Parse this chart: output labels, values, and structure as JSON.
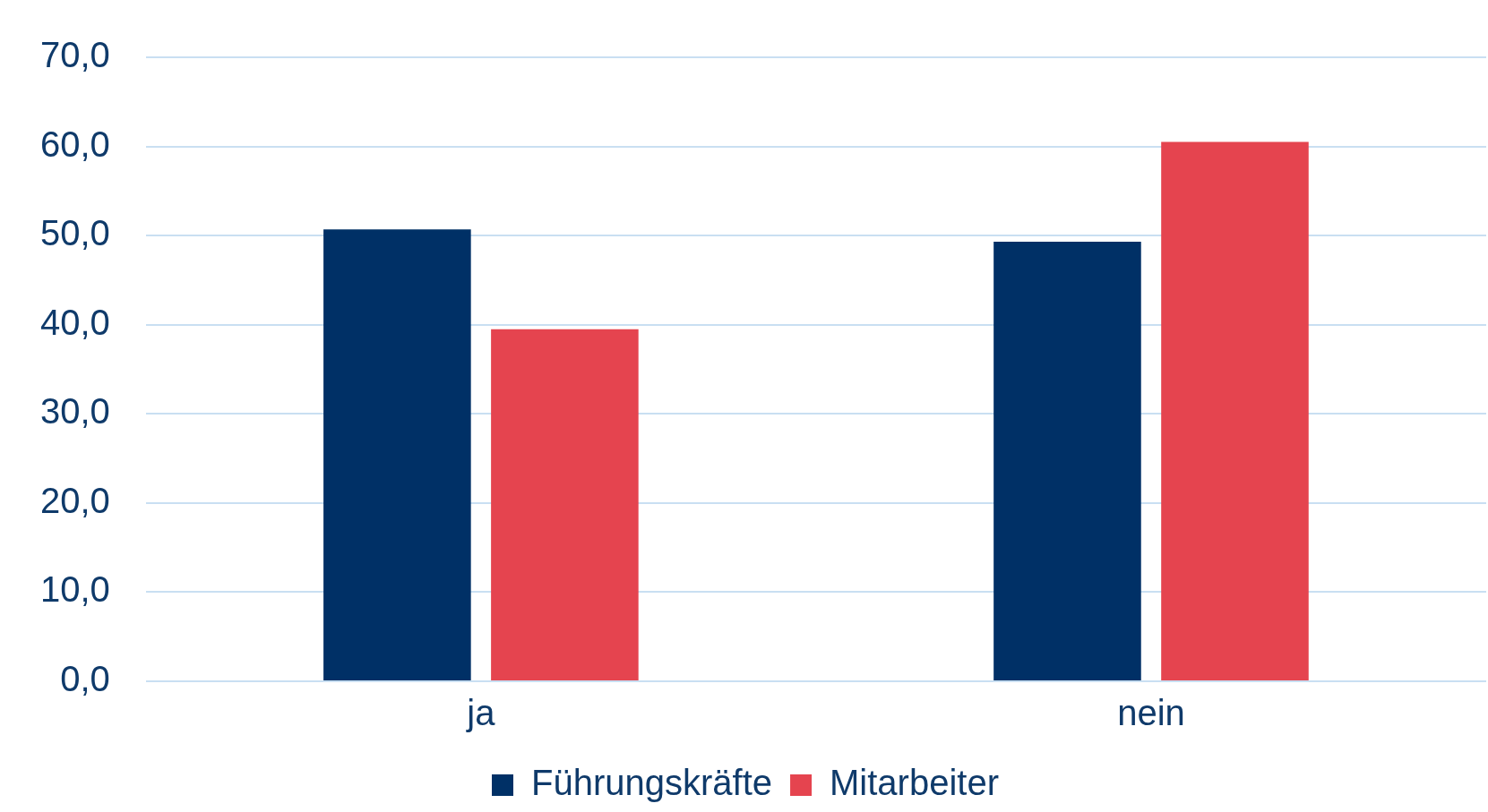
{
  "chart_data": {
    "type": "bar",
    "categories": [
      "ja",
      "nein"
    ],
    "series": [
      {
        "name": "Führungskräfte",
        "color": "#003066",
        "values": [
          50.7,
          49.3
        ]
      },
      {
        "name": "Mitarbeiter",
        "color": "#e5444f",
        "values": [
          39.5,
          60.5
        ]
      }
    ],
    "ylim": [
      0,
      70
    ],
    "yticks": [
      {
        "value": 0,
        "label": "0,0"
      },
      {
        "value": 10,
        "label": "10,0"
      },
      {
        "value": 20,
        "label": "20,0"
      },
      {
        "value": 30,
        "label": "30,0"
      },
      {
        "value": 40,
        "label": "40,0"
      },
      {
        "value": 50,
        "label": "50,0"
      },
      {
        "value": 60,
        "label": "60,0"
      },
      {
        "value": 70,
        "label": "70,0"
      }
    ],
    "grid": "y",
    "legend": "bottom"
  }
}
